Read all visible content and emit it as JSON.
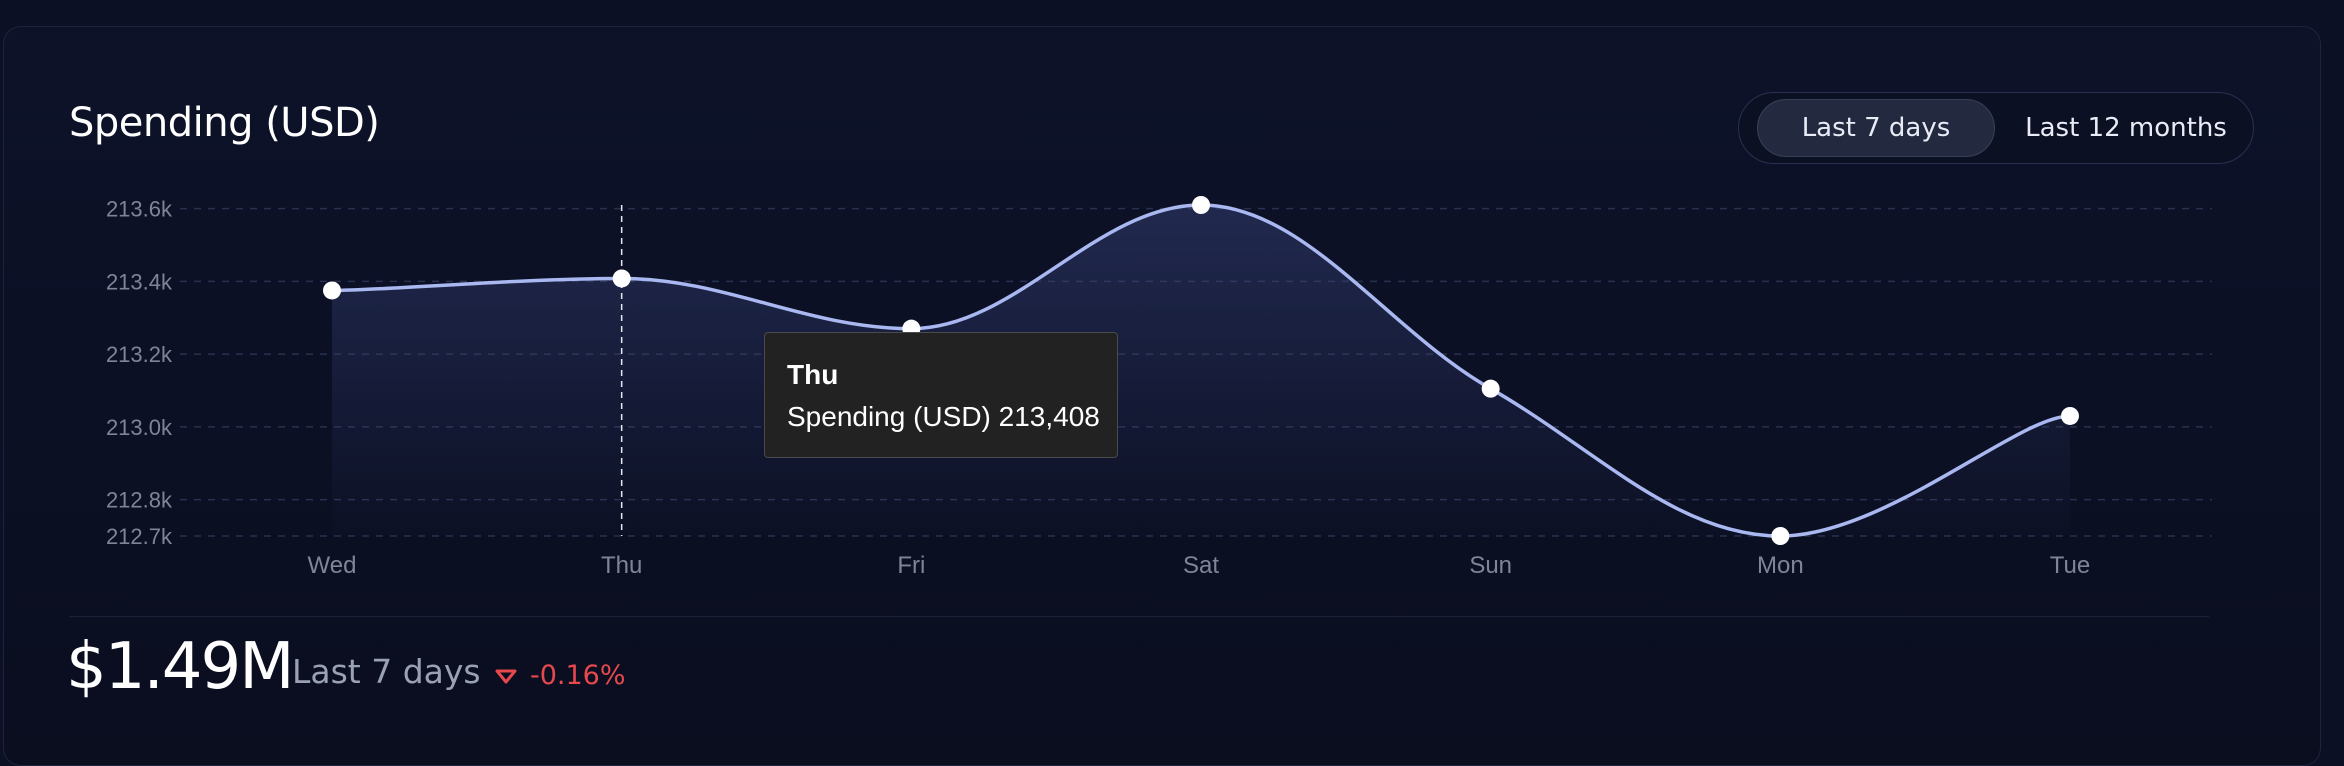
{
  "header": {
    "title": "Spending (USD)"
  },
  "range_toggle": {
    "options": [
      "Last 7 days",
      "Last 12 months"
    ],
    "selected": "Last 7 days"
  },
  "chart_data": {
    "type": "area",
    "categories": [
      "Wed",
      "Thu",
      "Fri",
      "Sat",
      "Sun",
      "Mon",
      "Tue"
    ],
    "series": [
      {
        "name": "Spending (USD)",
        "values": [
          213375,
          213408,
          213270,
          213610,
          213105,
          212700,
          213030
        ]
      }
    ],
    "y_ticks": [
      "213.6k",
      "213.4k",
      "213.2k",
      "213.0k",
      "212.8k",
      "212.7k"
    ],
    "y_tick_values": [
      213600,
      213400,
      213200,
      213000,
      212800,
      212700
    ],
    "ylim": [
      212700,
      213610
    ],
    "grid": true,
    "line_color": "#a9b8f0",
    "highlight": {
      "category": "Thu",
      "label": "Spending (USD)",
      "value": "213,408"
    }
  },
  "summary": {
    "total": "$1.49M",
    "period": "Last 7 days",
    "delta": "-0.16%",
    "delta_color": "#e5484d"
  }
}
